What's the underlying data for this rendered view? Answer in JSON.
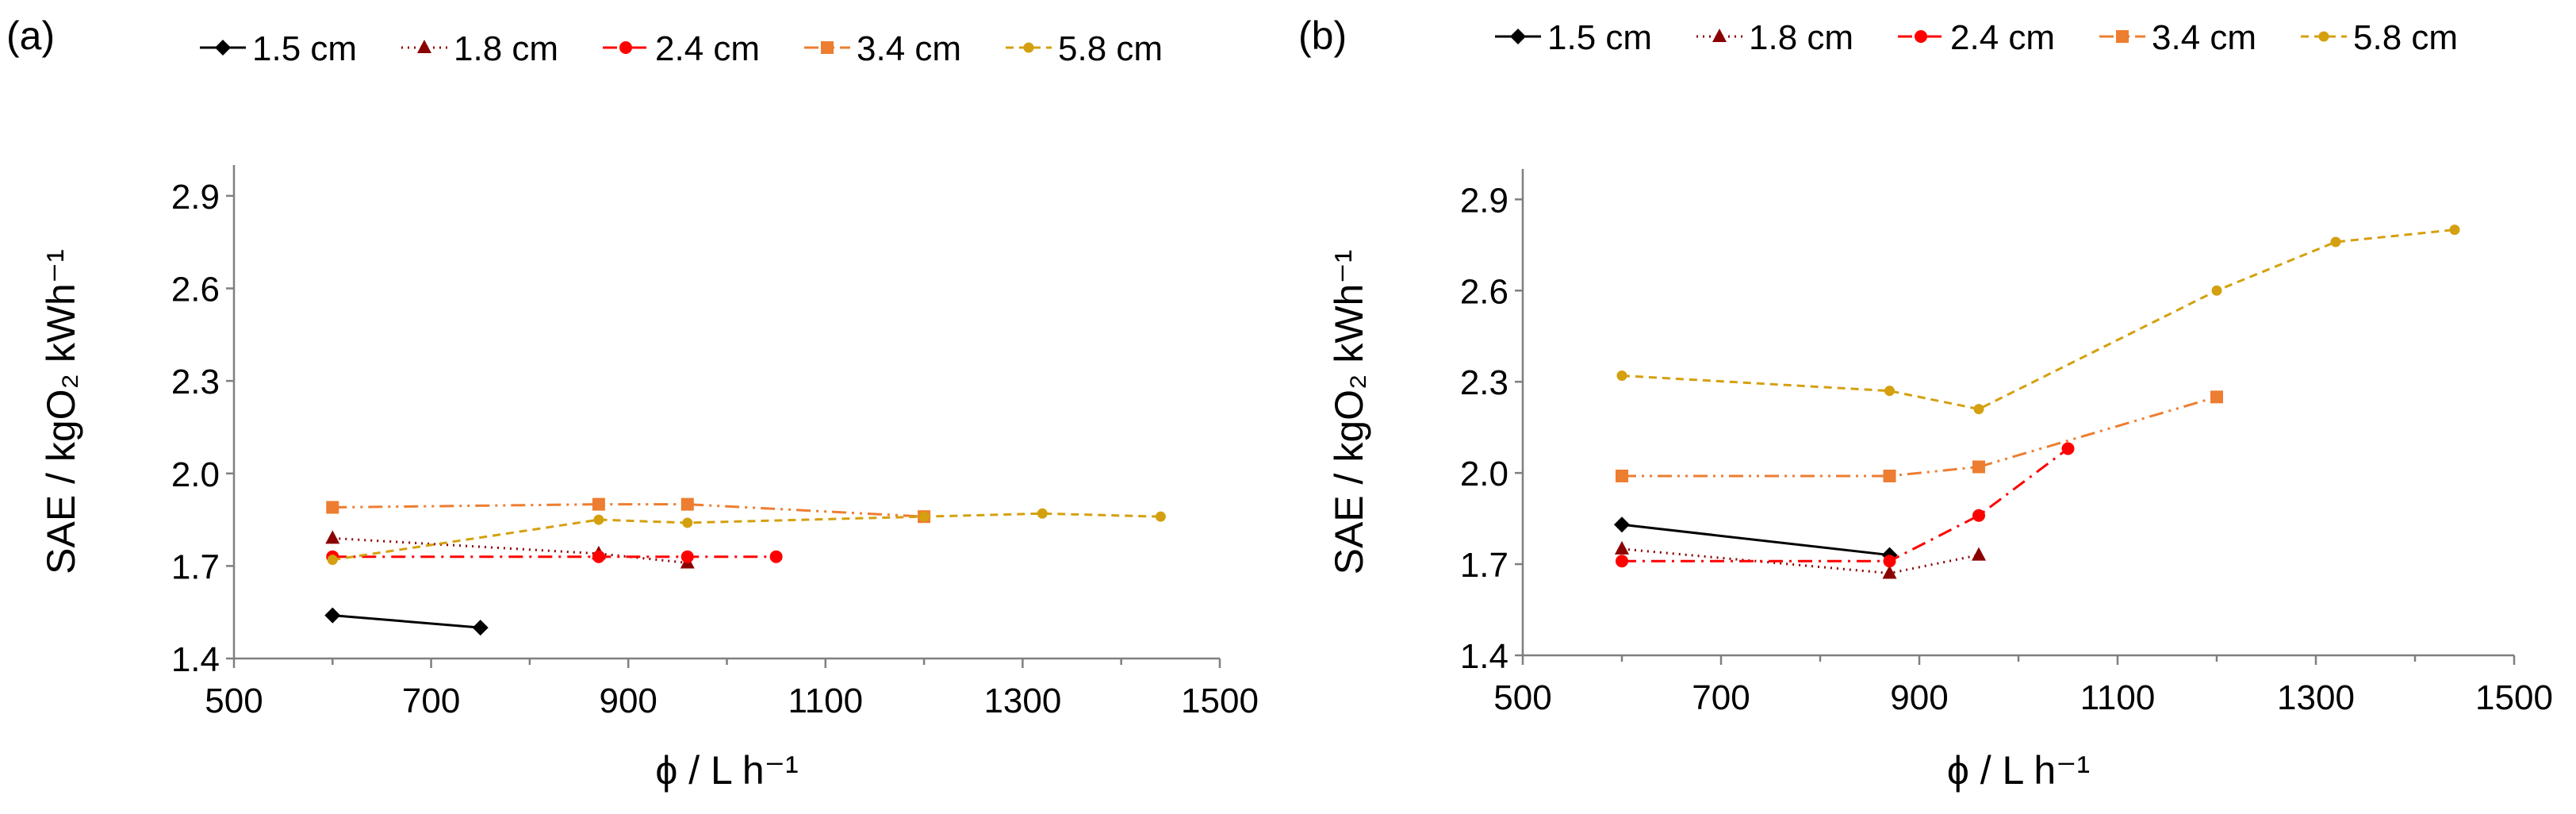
{
  "chart_data": [
    {
      "panel": "(a)",
      "type": "line",
      "xlabel": "ϕ / L h⁻¹",
      "ylabel": "SAE / kgO₂ kWh⁻¹",
      "xlim": [
        500,
        1500
      ],
      "ylim": [
        1.4,
        3.0
      ],
      "xticks": [
        500,
        700,
        900,
        1100,
        1300,
        1500
      ],
      "yticks": [
        1.4,
        1.7,
        2.0,
        2.3,
        2.6,
        2.9
      ],
      "xtick_labels": [
        "500",
        "700",
        "900",
        "1100",
        "1300",
        "1500"
      ],
      "ytick_labels": [
        "1.4",
        "1.7",
        "2.0",
        "2.3",
        "2.6",
        "2.9"
      ],
      "legend_position": "top",
      "series": [
        {
          "name": "1.5 cm",
          "color": "#000000",
          "marker": "diamond",
          "dash": "solid",
          "x": [
            600,
            750
          ],
          "y": [
            1.54,
            1.5
          ]
        },
        {
          "name": "1.8 cm",
          "color": "#8B0000",
          "marker": "triangle",
          "dash": "dotted",
          "x": [
            600,
            870,
            960
          ],
          "y": [
            1.79,
            1.74,
            1.71
          ]
        },
        {
          "name": "2.4 cm",
          "color": "#FF0000",
          "marker": "circle",
          "dash": "dashdot",
          "x": [
            600,
            870,
            960,
            1050
          ],
          "y": [
            1.73,
            1.73,
            1.73,
            1.73
          ]
        },
        {
          "name": "3.4 cm",
          "color": "#ED7D31",
          "marker": "square",
          "dash": "dashdotdot",
          "x": [
            600,
            870,
            960,
            1200
          ],
          "y": [
            1.89,
            1.9,
            1.9,
            1.86
          ]
        },
        {
          "name": "5.8 cm",
          "color": "#D4A00F",
          "marker": "smallcircle",
          "dash": "dashed",
          "x": [
            600,
            870,
            960,
            1200,
            1320,
            1440
          ],
          "y": [
            1.72,
            1.85,
            1.84,
            1.86,
            1.87,
            1.86
          ]
        }
      ]
    },
    {
      "panel": "(b)",
      "type": "line",
      "xlabel": "ϕ / L h⁻¹",
      "ylabel": "SAE / kgO₂ kWh⁻¹",
      "xlim": [
        500,
        1500
      ],
      "ylim": [
        1.4,
        3.0
      ],
      "xticks": [
        500,
        700,
        900,
        1100,
        1300,
        1500
      ],
      "yticks": [
        1.4,
        1.7,
        2.0,
        2.3,
        2.6,
        2.9
      ],
      "xtick_labels": [
        "500",
        "700",
        "900",
        "1100",
        "1300",
        "1500"
      ],
      "ytick_labels": [
        "1.4",
        "1.7",
        "2.0",
        "2.3",
        "2.6",
        "2.9"
      ],
      "legend_position": "top",
      "series": [
        {
          "name": "1.5 cm",
          "color": "#000000",
          "marker": "diamond",
          "dash": "solid",
          "x": [
            600,
            870
          ],
          "y": [
            1.83,
            1.73
          ]
        },
        {
          "name": "1.8 cm",
          "color": "#8B0000",
          "marker": "triangle",
          "dash": "dotted",
          "x": [
            600,
            870,
            960
          ],
          "y": [
            1.75,
            1.67,
            1.73
          ]
        },
        {
          "name": "2.4 cm",
          "color": "#FF0000",
          "marker": "circle",
          "dash": "dashdot",
          "x": [
            600,
            870,
            960,
            1050
          ],
          "y": [
            1.71,
            1.71,
            1.86,
            2.08
          ]
        },
        {
          "name": "3.4 cm",
          "color": "#ED7D31",
          "marker": "square",
          "dash": "dashdotdot",
          "x": [
            600,
            870,
            960,
            1200
          ],
          "y": [
            1.99,
            1.99,
            2.02,
            2.25
          ]
        },
        {
          "name": "5.8 cm",
          "color": "#D4A00F",
          "marker": "smallcircle",
          "dash": "dashed",
          "x": [
            600,
            870,
            960,
            1200,
            1320,
            1440
          ],
          "y": [
            2.32,
            2.27,
            2.21,
            2.6,
            2.76,
            2.8
          ]
        }
      ]
    }
  ]
}
